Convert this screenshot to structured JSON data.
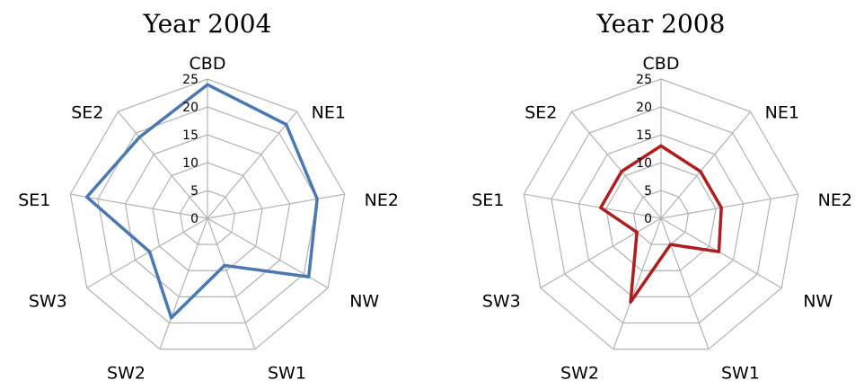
{
  "chart_data": [
    {
      "type": "radar",
      "title": "Year 2004",
      "categories": [
        "CBD",
        "NE1",
        "NE2",
        "NW",
        "SW1",
        "SW2",
        "SW3",
        "SE1",
        "SE2"
      ],
      "series": [
        {
          "values": [
            24,
            22,
            20,
            21,
            9,
            19,
            12,
            22,
            19
          ],
          "color": "#4a78b3"
        }
      ],
      "rlim": [
        0,
        25
      ],
      "ticks": [
        "0",
        "5",
        "10",
        "15",
        "20",
        "25"
      ],
      "grid": true
    },
    {
      "type": "radar",
      "title": "Year 2008",
      "categories": [
        "CBD",
        "NE1",
        "NE2",
        "NW",
        "SW1",
        "SW2",
        "SW3",
        "SE1",
        "SE2"
      ],
      "series": [
        {
          "values": [
            13,
            11,
            11,
            12,
            5,
            16,
            5,
            11,
            11
          ],
          "color": "#b01d1d"
        }
      ],
      "rlim": [
        0,
        25
      ],
      "ticks": [
        "0",
        "5",
        "10",
        "15",
        "20",
        "25"
      ],
      "grid": true
    }
  ]
}
